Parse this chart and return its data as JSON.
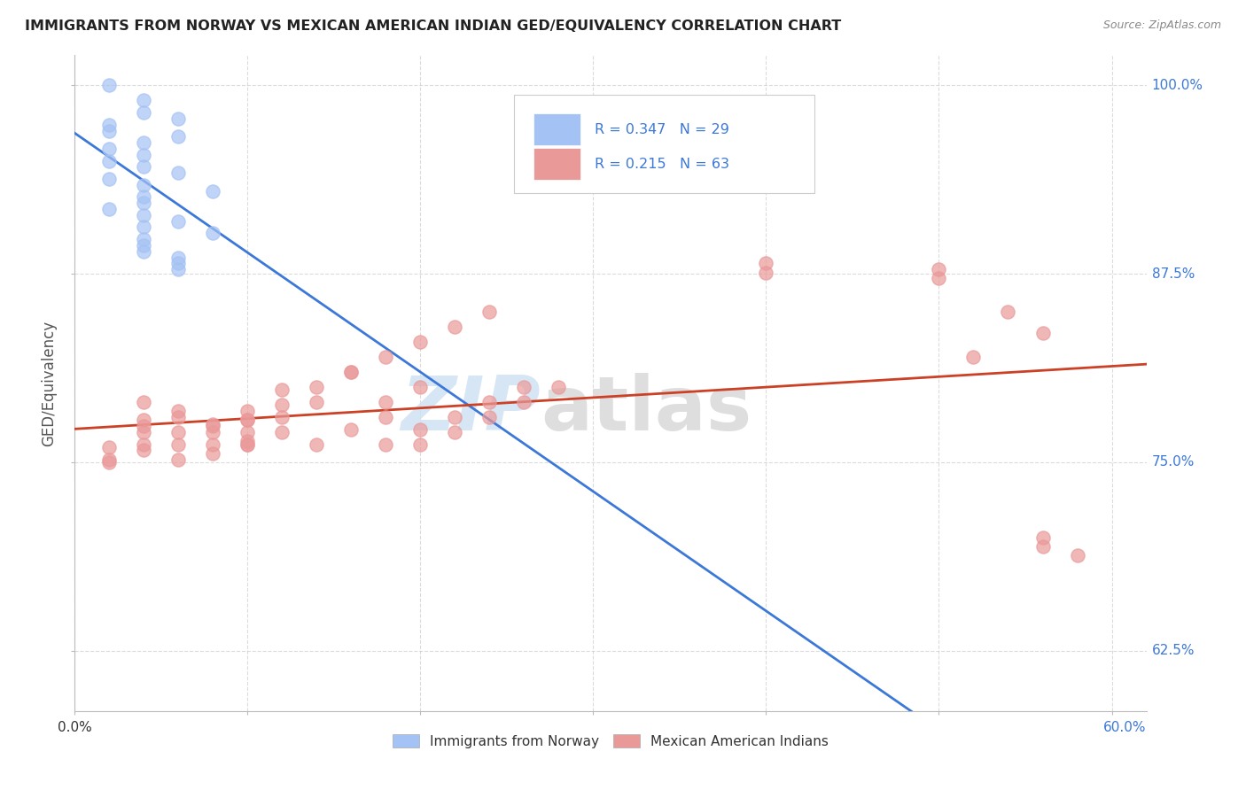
{
  "title": "IMMIGRANTS FROM NORWAY VS MEXICAN AMERICAN INDIAN GED/EQUIVALENCY CORRELATION CHART",
  "source": "Source: ZipAtlas.com",
  "ylabel": "GED/Equivalency",
  "R_blue": "0.347",
  "N_blue": "29",
  "R_pink": "0.215",
  "N_pink": "63",
  "legend_blue_label": "Immigrants from Norway",
  "legend_pink_label": "Mexican American Indians",
  "blue_color": "#a4c2f4",
  "pink_color": "#ea9999",
  "blue_line_color": "#3c78d8",
  "pink_line_color": "#cc4125",
  "watermark_zip_color": "#cfe2f3",
  "watermark_atlas_color": "#d9d9d9",
  "background_color": "#ffffff",
  "grid_color": "#cccccc",
  "right_label_color": "#3c78d8",
  "blue_x": [
    0.002,
    0.004,
    0.004,
    0.006,
    0.002,
    0.002,
    0.006,
    0.004,
    0.002,
    0.004,
    0.002,
    0.004,
    0.006,
    0.002,
    0.004,
    0.008,
    0.004,
    0.004,
    0.002,
    0.004,
    0.006,
    0.004,
    0.008,
    0.004,
    0.004,
    0.004,
    0.006,
    0.006,
    0.006
  ],
  "blue_y": [
    1.0,
    0.99,
    0.982,
    0.978,
    0.974,
    0.97,
    0.966,
    0.962,
    0.958,
    0.954,
    0.95,
    0.946,
    0.942,
    0.938,
    0.934,
    0.93,
    0.926,
    0.922,
    0.918,
    0.914,
    0.91,
    0.906,
    0.902,
    0.898,
    0.894,
    0.89,
    0.886,
    0.882,
    0.878
  ],
  "pink_x": [
    0.002,
    0.004,
    0.002,
    0.004,
    0.006,
    0.002,
    0.004,
    0.004,
    0.006,
    0.006,
    0.008,
    0.004,
    0.006,
    0.004,
    0.008,
    0.008,
    0.01,
    0.01,
    0.006,
    0.008,
    0.01,
    0.01,
    0.008,
    0.01,
    0.01,
    0.012,
    0.012,
    0.01,
    0.012,
    0.012,
    0.014,
    0.014,
    0.016,
    0.014,
    0.016,
    0.018,
    0.018,
    0.02,
    0.016,
    0.018,
    0.02,
    0.022,
    0.024,
    0.018,
    0.02,
    0.022,
    0.024,
    0.026,
    0.02,
    0.022,
    0.024,
    0.026,
    0.028,
    0.04,
    0.04,
    0.05,
    0.05,
    0.052,
    0.054,
    0.056,
    0.056,
    0.058,
    0.056
  ],
  "pink_y": [
    0.76,
    0.758,
    0.75,
    0.77,
    0.762,
    0.752,
    0.774,
    0.778,
    0.784,
    0.77,
    0.775,
    0.762,
    0.78,
    0.79,
    0.77,
    0.774,
    0.784,
    0.778,
    0.752,
    0.762,
    0.77,
    0.764,
    0.756,
    0.762,
    0.778,
    0.788,
    0.798,
    0.762,
    0.77,
    0.78,
    0.79,
    0.8,
    0.81,
    0.762,
    0.772,
    0.78,
    0.79,
    0.8,
    0.81,
    0.82,
    0.83,
    0.84,
    0.85,
    0.762,
    0.772,
    0.78,
    0.79,
    0.8,
    0.762,
    0.77,
    0.78,
    0.79,
    0.8,
    0.876,
    0.882,
    0.878,
    0.872,
    0.82,
    0.85,
    0.836,
    0.694,
    0.688,
    0.7
  ],
  "xlim": [
    0,
    0.062
  ],
  "ylim": [
    0.585,
    1.02
  ],
  "yticks": [
    0.625,
    0.75,
    0.875,
    1.0
  ],
  "ytick_labels": [
    "62.5%",
    "75.0%",
    "87.5%",
    "100.0%"
  ],
  "xtick_left_label": "0.0%",
  "xtick_right_label": "60.0%"
}
